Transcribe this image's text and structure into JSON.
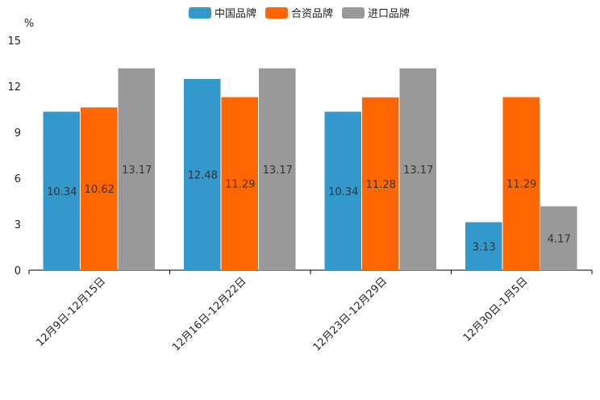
{
  "chart_data": {
    "type": "bar",
    "title": "",
    "ylabel": "%",
    "xlabel": "",
    "ylim": [
      0,
      15
    ],
    "yticks": [
      "0",
      "3",
      "6",
      "9",
      "12",
      "15"
    ],
    "categories": [
      "12月9日-12月15日",
      "12月16日-12月22日",
      "12月23日-12月29日",
      "12月30日-1月5日"
    ],
    "series": [
      {
        "name": "中国品牌",
        "color": "#3399cc",
        "values": [
          10.34,
          12.48,
          10.34,
          3.13
        ],
        "labels": [
          "10.34",
          "12.48",
          "10.34",
          "3.13"
        ]
      },
      {
        "name": "合资品牌",
        "color": "#ff6600",
        "values": [
          10.62,
          11.29,
          11.28,
          11.29
        ],
        "labels": [
          "10.62",
          "11.29",
          "11.28",
          "11.29"
        ]
      },
      {
        "name": "进口品牌",
        "color": "#999999",
        "values": [
          13.17,
          13.17,
          13.17,
          4.17
        ],
        "labels": [
          "13.17",
          "13.17",
          "13.17",
          "4.17"
        ]
      }
    ],
    "legend_position": "top-center",
    "grid": false
  }
}
